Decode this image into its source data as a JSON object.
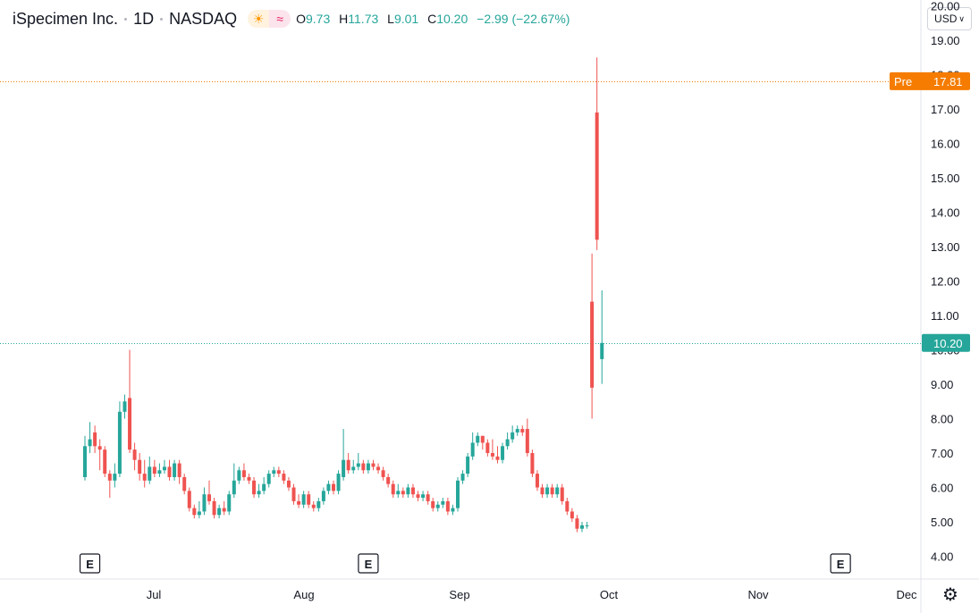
{
  "header": {
    "symbol_name": "iSpecimen Inc.",
    "interval": "1D",
    "exchange": "NASDAQ",
    "sun_icon": "sun-icon",
    "wave_icon": "wave-icon",
    "ohlc": {
      "o_label": "O",
      "o_value": "9.73",
      "h_label": "H",
      "h_value": "11.73",
      "l_label": "L",
      "l_value": "9.01",
      "c_label": "C",
      "c_value": "10.20",
      "change": "−2.99 (−22.67%)"
    }
  },
  "currency": {
    "label": "USD"
  },
  "colors": {
    "up": "#26a69a",
    "down": "#ef5350",
    "pre": "#f57c00",
    "grid": "#f0f3fa"
  },
  "settings_icon": "gear-icon",
  "chart_data": {
    "type": "candlestick",
    "ylim": [
      3.7,
      20.0
    ],
    "y_ticks": [
      "4.00",
      "5.00",
      "6.00",
      "7.00",
      "8.00",
      "9.00",
      "10.00",
      "11.00",
      "12.00",
      "13.00",
      "14.00",
      "15.00",
      "16.00",
      "17.00",
      "18.00",
      "19.00",
      "20.00"
    ],
    "x_labels": [
      "Jul",
      "Aug",
      "Sep",
      "Oct",
      "Nov",
      "Dec"
    ],
    "price_labels": [
      {
        "prefix": "Pre",
        "value": "17.81",
        "price": 17.81,
        "color": "#f57c00"
      },
      {
        "prefix": "",
        "value": "10.20",
        "price": 10.2,
        "color": "#26a69a"
      }
    ],
    "events": [
      {
        "label": "E",
        "bar_index": 1
      },
      {
        "label": "E",
        "bar_index": 57
      },
      {
        "label": "E",
        "bar_index": 152
      }
    ],
    "candles": [
      [
        6.3,
        7.2,
        7.5,
        6.2
      ],
      [
        7.2,
        7.4,
        7.9,
        7.0
      ],
      [
        7.6,
        7.2,
        7.8,
        7.0
      ],
      [
        7.2,
        7.1,
        7.4,
        6.5
      ],
      [
        7.1,
        6.4,
        7.2,
        6.3
      ],
      [
        6.4,
        6.2,
        6.5,
        5.7
      ],
      [
        6.2,
        6.4,
        6.7,
        6.0
      ],
      [
        6.4,
        8.2,
        8.5,
        6.3
      ],
      [
        8.2,
        8.5,
        8.7,
        8.0
      ],
      [
        8.6,
        7.1,
        10.0,
        7.0
      ],
      [
        7.1,
        6.8,
        7.3,
        6.5
      ],
      [
        6.8,
        6.4,
        7.0,
        6.2
      ],
      [
        6.4,
        6.2,
        6.8,
        6.0
      ],
      [
        6.2,
        6.6,
        6.9,
        6.1
      ],
      [
        6.6,
        6.4,
        6.8,
        6.3
      ],
      [
        6.4,
        6.5,
        6.7,
        6.3
      ],
      [
        6.5,
        6.6,
        6.8,
        6.4
      ],
      [
        6.6,
        6.3,
        6.8,
        6.2
      ],
      [
        6.3,
        6.7,
        6.8,
        6.2
      ],
      [
        6.7,
        6.3,
        6.8,
        6.1
      ],
      [
        6.3,
        5.9,
        6.4,
        5.8
      ],
      [
        5.9,
        5.4,
        6.0,
        5.3
      ],
      [
        5.4,
        5.2,
        5.5,
        5.1
      ],
      [
        5.2,
        5.3,
        5.6,
        5.1
      ],
      [
        5.3,
        5.8,
        6.0,
        5.2
      ],
      [
        5.8,
        5.6,
        6.2,
        5.5
      ],
      [
        5.6,
        5.2,
        5.7,
        5.1
      ],
      [
        5.2,
        5.4,
        5.5,
        5.1
      ],
      [
        5.4,
        5.3,
        5.6,
        5.2
      ],
      [
        5.3,
        5.8,
        5.9,
        5.2
      ],
      [
        5.8,
        6.2,
        6.7,
        5.7
      ],
      [
        6.2,
        6.5,
        6.6,
        6.1
      ],
      [
        6.5,
        6.3,
        6.7,
        6.2
      ],
      [
        6.3,
        6.2,
        6.4,
        6.1
      ],
      [
        6.2,
        5.8,
        6.3,
        5.7
      ],
      [
        5.8,
        5.9,
        6.1,
        5.7
      ],
      [
        5.9,
        6.1,
        6.3,
        5.8
      ],
      [
        6.1,
        6.4,
        6.5,
        6.0
      ],
      [
        6.4,
        6.5,
        6.6,
        6.3
      ],
      [
        6.5,
        6.4,
        6.6,
        6.3
      ],
      [
        6.4,
        6.2,
        6.5,
        6.1
      ],
      [
        6.2,
        6.0,
        6.3,
        5.9
      ],
      [
        6.0,
        5.6,
        6.1,
        5.5
      ],
      [
        5.6,
        5.5,
        5.8,
        5.4
      ],
      [
        5.5,
        5.8,
        5.9,
        5.4
      ],
      [
        5.8,
        5.5,
        5.9,
        5.4
      ],
      [
        5.5,
        5.4,
        5.6,
        5.3
      ],
      [
        5.4,
        5.6,
        5.7,
        5.3
      ],
      [
        5.6,
        5.9,
        6.0,
        5.5
      ],
      [
        5.9,
        6.1,
        6.2,
        5.8
      ],
      [
        6.1,
        5.9,
        6.2,
        5.8
      ],
      [
        5.9,
        6.4,
        6.5,
        5.8
      ],
      [
        6.3,
        6.8,
        7.7,
        6.2
      ],
      [
        6.8,
        6.5,
        7.0,
        6.4
      ],
      [
        6.5,
        6.6,
        6.8,
        6.4
      ],
      [
        6.6,
        6.7,
        7.0,
        6.5
      ],
      [
        6.7,
        6.5,
        6.8,
        6.4
      ],
      [
        6.5,
        6.7,
        6.8,
        6.4
      ],
      [
        6.7,
        6.6,
        6.8,
        6.5
      ],
      [
        6.6,
        6.5,
        6.7,
        6.4
      ],
      [
        6.5,
        6.3,
        6.6,
        6.2
      ],
      [
        6.3,
        6.1,
        6.4,
        6.0
      ],
      [
        6.1,
        5.8,
        6.2,
        5.7
      ],
      [
        5.8,
        5.9,
        6.1,
        5.7
      ],
      [
        5.9,
        5.8,
        6.0,
        5.7
      ],
      [
        5.8,
        6.0,
        6.1,
        5.7
      ],
      [
        6.0,
        5.8,
        6.1,
        5.7
      ],
      [
        5.8,
        5.7,
        5.9,
        5.6
      ],
      [
        5.7,
        5.8,
        5.9,
        5.6
      ],
      [
        5.8,
        5.6,
        5.9,
        5.5
      ],
      [
        5.6,
        5.4,
        5.7,
        5.3
      ],
      [
        5.4,
        5.5,
        5.6,
        5.3
      ],
      [
        5.5,
        5.6,
        5.7,
        5.4
      ],
      [
        5.6,
        5.3,
        5.7,
        5.2
      ],
      [
        5.3,
        5.4,
        5.5,
        5.2
      ],
      [
        5.4,
        6.2,
        6.3,
        5.3
      ],
      [
        6.2,
        6.4,
        6.5,
        6.1
      ],
      [
        6.4,
        6.9,
        7.0,
        6.3
      ],
      [
        6.9,
        7.3,
        7.6,
        6.8
      ],
      [
        7.3,
        7.5,
        7.6,
        7.2
      ],
      [
        7.5,
        7.3,
        7.5,
        7.1
      ],
      [
        7.3,
        7.0,
        7.4,
        6.9
      ],
      [
        7.0,
        6.9,
        7.4,
        6.8
      ],
      [
        6.9,
        6.8,
        7.2,
        6.7
      ],
      [
        6.8,
        7.2,
        7.3,
        6.7
      ],
      [
        7.2,
        7.4,
        7.6,
        7.1
      ],
      [
        7.4,
        7.6,
        7.8,
        7.3
      ],
      [
        7.6,
        7.7,
        7.8,
        7.5
      ],
      [
        7.7,
        7.6,
        7.8,
        7.5
      ],
      [
        7.7,
        7.0,
        8.0,
        6.9
      ],
      [
        7.0,
        6.4,
        7.1,
        6.3
      ],
      [
        6.4,
        6.0,
        6.5,
        5.9
      ],
      [
        6.0,
        5.8,
        6.1,
        5.7
      ],
      [
        5.8,
        6.0,
        6.1,
        5.7
      ],
      [
        6.0,
        5.8,
        6.1,
        5.7
      ],
      [
        5.8,
        6.0,
        6.1,
        5.7
      ],
      [
        6.0,
        5.6,
        6.1,
        5.5
      ],
      [
        5.6,
        5.3,
        5.7,
        5.2
      ],
      [
        5.3,
        5.1,
        5.4,
        5.0
      ],
      [
        5.1,
        4.8,
        5.2,
        4.7
      ],
      [
        4.8,
        4.9,
        5.0,
        4.7
      ],
      [
        4.9,
        4.9,
        5.0,
        4.8
      ],
      [
        11.4,
        8.9,
        12.8,
        8.0
      ],
      [
        16.9,
        13.2,
        18.5,
        12.9
      ],
      [
        9.73,
        10.2,
        11.73,
        9.01
      ]
    ]
  }
}
